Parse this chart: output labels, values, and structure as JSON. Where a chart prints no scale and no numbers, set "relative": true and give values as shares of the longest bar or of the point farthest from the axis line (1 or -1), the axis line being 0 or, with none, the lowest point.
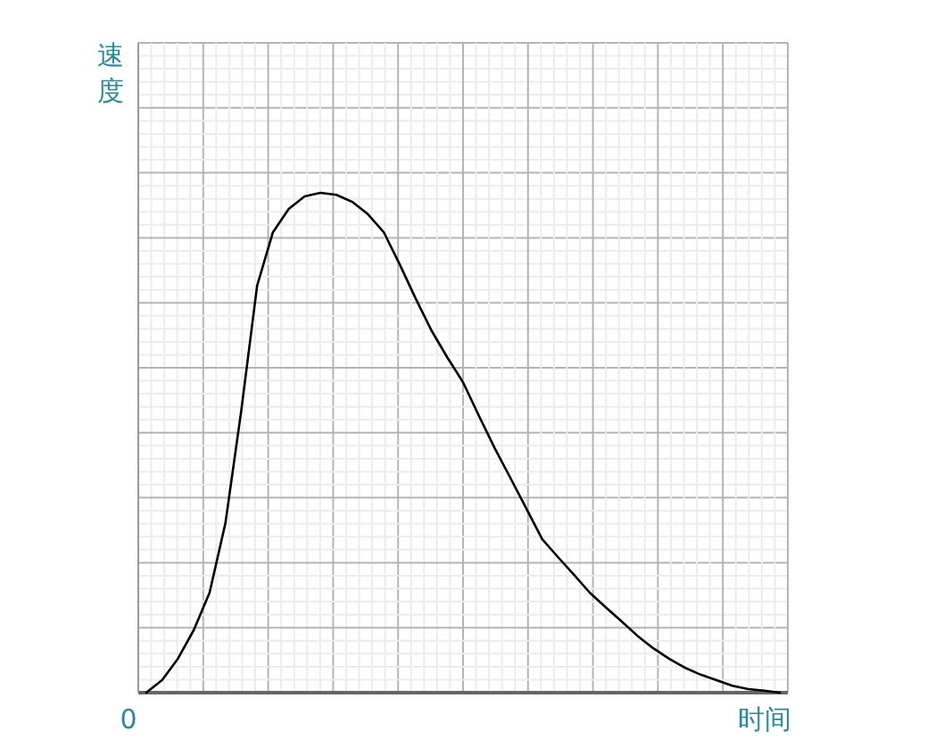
{
  "chart_data": {
    "type": "line",
    "relative": true,
    "ylabel": "速度",
    "annotations": [
      "0",
      "时间"
    ],
    "grid": true,
    "color": "#000000",
    "categories": [
      null,
      null,
      null,
      null,
      null,
      null,
      null,
      null,
      null,
      null,
      null,
      null,
      null,
      null,
      null,
      null,
      null,
      null,
      null,
      null,
      null,
      null,
      null,
      null,
      null,
      null,
      null,
      null,
      null,
      null,
      null,
      null,
      null,
      null,
      null,
      null,
      null,
      null,
      null,
      null,
      null
    ],
    "values": [
      0,
      0.025,
      0.068,
      0.125,
      0.2,
      0.339,
      0.564,
      0.814,
      0.921,
      0.968,
      0.993,
      1,
      0.996,
      0.982,
      0.957,
      0.921,
      0.857,
      0.789,
      0.725,
      0.671,
      0.621,
      0.554,
      0.489,
      0.429,
      0.368,
      0.307,
      0.271,
      0.236,
      0.2,
      0.171,
      0.143,
      0.114,
      0.089,
      0.068,
      0.05,
      0.036,
      0.025,
      0.014,
      0.007,
      0.004,
      0
    ]
  }
}
